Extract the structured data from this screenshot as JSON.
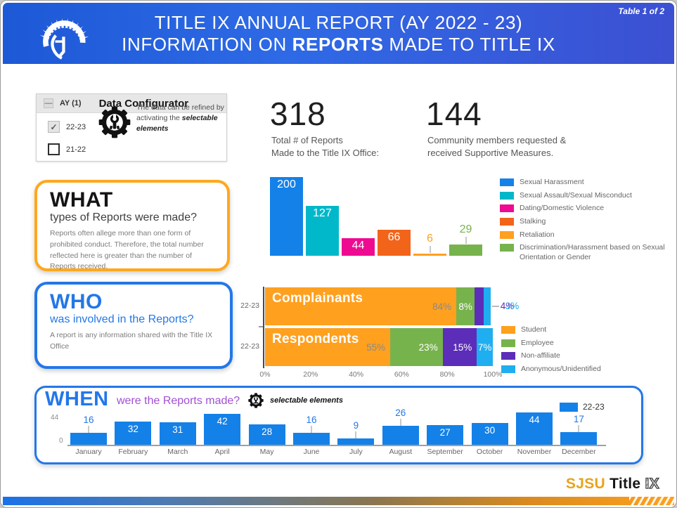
{
  "page": {
    "table_badge": "Table 1 of 2"
  },
  "header": {
    "line1": "TITLE IX ANNUAL REPORT (AY 2022 - 23)",
    "line2_pre": "INFORMATION ON ",
    "line2_bold": "REPORTS",
    "line2_post": " MADE TO TITLE IX"
  },
  "configurator": {
    "collapse": "—",
    "field": "AY (1)",
    "title": "Data Configurator",
    "options": [
      {
        "label": "22-23",
        "checked": true
      },
      {
        "label": "21-22",
        "checked": false
      }
    ],
    "note_pre": "The data can be refined by activating the ",
    "note_bold": "selectable elements"
  },
  "stats": [
    {
      "value": "318",
      "line1": "Total # of Reports",
      "line2": "Made to the Title IX Office:"
    },
    {
      "value": "144",
      "line1": "Community members requested &",
      "line2": "received Supportive Measures."
    }
  ],
  "what": {
    "title": "WHAT",
    "subtitle": "types of Reports were made?",
    "body": "Reports often allege more than one form of prohibited conduct. Therefore, the total number reflected here is greater than the number of Reports received."
  },
  "who": {
    "title": "WHO",
    "subtitle": "was involved in the Reports?",
    "body": "A report is any information shared with the Title IX Office"
  },
  "when": {
    "title": "WHEN",
    "subtitle": "were the Reports made?",
    "note": "selectable elements",
    "legend_label": "22-23"
  },
  "footer": {
    "sjsu": "SJSU",
    "title": "Title",
    "ix": "IX"
  },
  "colors": {
    "header_gradient_left": "#1d59d6",
    "header_gradient_right": "#3c50d2",
    "accent_blue": "#2377E8",
    "accent_orange": "#FEA81E",
    "accent_purple_text": "#A14FD6",
    "strip_gradient": [
      "#1B71E8",
      "#FFA11E"
    ]
  },
  "chart_data": [
    {
      "id": "what-report-types",
      "type": "bar",
      "title": "WHAT types of Reports were made?",
      "categories": [
        "Sexual Harassment",
        "Sexual Assault/Sexual Misconduct",
        "Dating/Domestic Violence",
        "Stalking",
        "Retaliation",
        "Discrimination/Harassment based on Sexual Orientation or Gender"
      ],
      "values": [
        200,
        127,
        44,
        66,
        6,
        29
      ],
      "colors": [
        "#1481E8",
        "#00B8C9",
        "#EE0B92",
        "#F2641A",
        "#FFA01F",
        "#77B34D"
      ],
      "label_placement": [
        "inside",
        "inside",
        "inside",
        "inside",
        "outside",
        "outside"
      ],
      "ylim": [
        0,
        200
      ],
      "grid": false,
      "legend_position": "right"
    },
    {
      "id": "who-involvement",
      "type": "stacked-bar-horizontal",
      "series": [
        "Student",
        "Employee",
        "Non-affiliate",
        "Anonymous/Unidentified"
      ],
      "colors": [
        "#FFA01F",
        "#77B34D",
        "#5C2DB8",
        "#1FAEF0"
      ],
      "rows": [
        {
          "axis_label": "22-23",
          "title": "Complainants",
          "values": [
            84,
            8,
            4,
            3
          ],
          "labels": [
            "84%",
            "8%",
            "4%",
            "3%"
          ],
          "label_styles": [
            "inside-right-muted",
            "inside-center-white",
            "outside",
            "outside"
          ]
        },
        {
          "axis_label": "22-23",
          "title": "Respondents",
          "values": [
            55,
            23,
            15,
            7
          ],
          "labels": [
            "55%",
            "23%",
            "15%",
            "7%"
          ],
          "label_styles": [
            "inside-right-muted",
            "inside-right-white",
            "inside-right-white",
            "inside-center-white"
          ]
        }
      ],
      "x_ticks": [
        "0%",
        "20%",
        "40%",
        "60%",
        "80%",
        "100%"
      ],
      "xlim": [
        0,
        100
      ],
      "legend_position": "right"
    },
    {
      "id": "when-monthly",
      "type": "bar",
      "series_name": "22-23",
      "color": "#1481E8",
      "categories": [
        "January",
        "February",
        "March",
        "April",
        "May",
        "June",
        "July",
        "August",
        "September",
        "October",
        "November",
        "December"
      ],
      "values": [
        16,
        32,
        31,
        42,
        28,
        16,
        9,
        26,
        27,
        30,
        44,
        17
      ],
      "label_placement": [
        "outside",
        "inside",
        "inside",
        "inside",
        "inside",
        "outside",
        "outside",
        "outside",
        "inside",
        "inside",
        "inside",
        "outside"
      ],
      "ylim": [
        0,
        44
      ],
      "y_ticks": [
        "44",
        "0"
      ],
      "grid": false,
      "legend_position": "top-right"
    }
  ]
}
